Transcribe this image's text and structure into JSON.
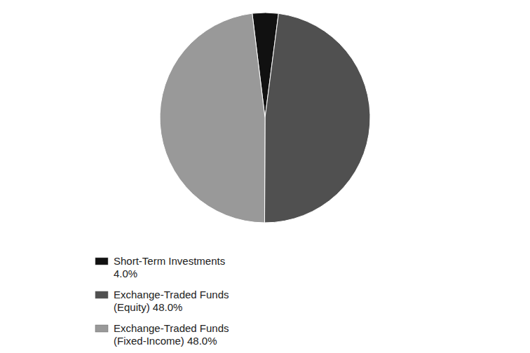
{
  "chart_data": {
    "type": "pie",
    "categories": [
      "Short-Term Investments\n4.0%",
      "Exchange-Traded Funds\n(Equity) 48.0%",
      "Exchange-Traded Funds\n(Fixed-Income) 48.0%"
    ],
    "values": [
      4.0,
      48.0,
      48.0
    ],
    "colors": [
      "#111111",
      "#505050",
      "#999999"
    ],
    "legend": "lower left"
  }
}
